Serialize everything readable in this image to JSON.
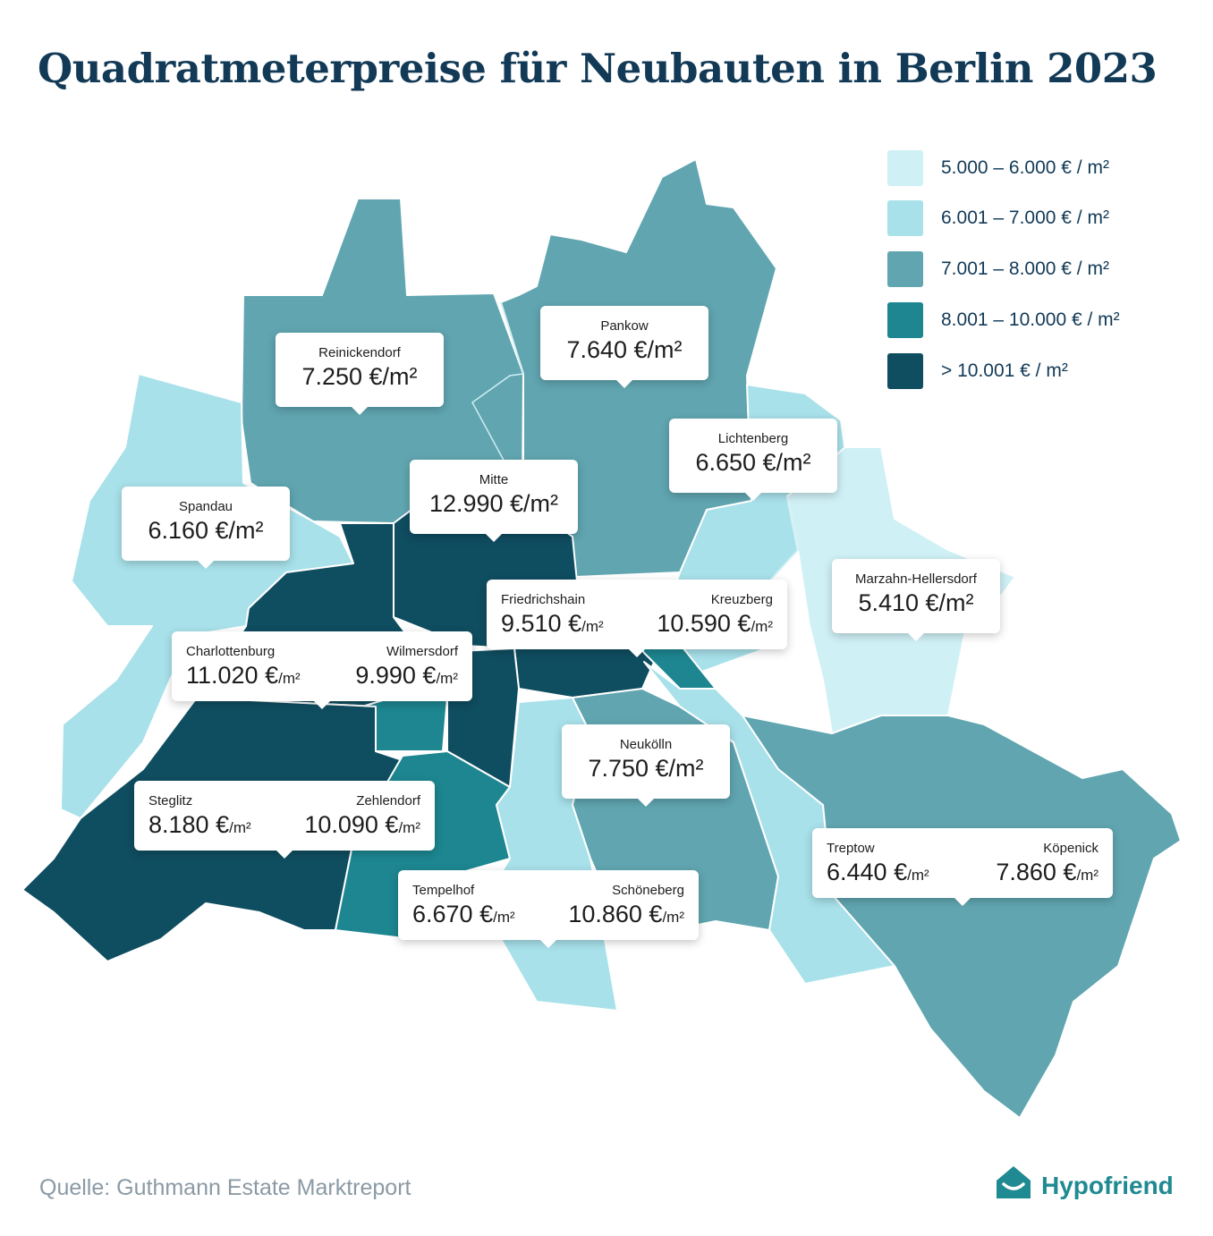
{
  "title": "Quadratmeterpreise für Neubauten in Berlin 2023",
  "colors": {
    "class1": "#cff0f5",
    "class2": "#a8e1ea",
    "class3": "#60a5b0",
    "class4": "#1d8690",
    "class5": "#0f4d60",
    "text": "#123a57",
    "brand": "#1f8a91"
  },
  "legend": [
    {
      "label": "5.000 – 6.000 € / m²",
      "color": "#cff0f5"
    },
    {
      "label": "6.001 – 7.000 € / m²",
      "color": "#a8e1ea"
    },
    {
      "label": "7.001 – 8.000 € / m²",
      "color": "#60a5b0"
    },
    {
      "label": "8.001 – 10.000 € / m²",
      "color": "#1d8690"
    },
    {
      "label": "> 10.001 € / m²",
      "color": "#0f4d60"
    }
  ],
  "districts": {
    "reinickendorf": {
      "name": "Reinickendorf",
      "price": "7.250 €/m²"
    },
    "pankow": {
      "name": "Pankow",
      "price": "7.640 €/m²"
    },
    "lichtenberg": {
      "name": "Lichtenberg",
      "price": "6.650 €/m²"
    },
    "mitte": {
      "name": "Mitte",
      "price": "12.990 €/m²"
    },
    "spandau": {
      "name": "Spandau",
      "price": "6.160 €/m²"
    },
    "marzahn": {
      "name": "Marzahn-Hellersdorf",
      "price": "5.410 €/m²"
    },
    "friedrichshain": {
      "name": "Friedrichshain",
      "price": "9.510 €",
      "unit": "/m²"
    },
    "kreuzberg": {
      "name": "Kreuzberg",
      "price": "10.590 €",
      "unit": "/m²"
    },
    "charlottenburg": {
      "name": "Charlottenburg",
      "price": "11.020 €",
      "unit": "/m²"
    },
    "wilmersdorf": {
      "name": "Wilmersdorf",
      "price": "9.990 €",
      "unit": "/m²"
    },
    "neukoelln": {
      "name": "Neukölln",
      "price": "7.750 €/m²"
    },
    "steglitz": {
      "name": "Steglitz",
      "price": "8.180 €",
      "unit": "/m²"
    },
    "zehlendorf": {
      "name": "Zehlendorf",
      "price": "10.090 €",
      "unit": "/m²"
    },
    "treptow": {
      "name": "Treptow",
      "price": "6.440 €",
      "unit": "/m²"
    },
    "koepenick": {
      "name": "Köpenick",
      "price": "7.860 €",
      "unit": "/m²"
    },
    "tempelhof": {
      "name": "Tempelhof",
      "price": "6.670 €",
      "unit": "/m²"
    },
    "schoeneberg": {
      "name": "Schöneberg",
      "price": "10.860 €",
      "unit": "/m²"
    }
  },
  "footer": {
    "source": "Quelle: Guthmann Estate Marktreport",
    "brand": "Hypofriend",
    "brand_icon": "house-icon"
  }
}
